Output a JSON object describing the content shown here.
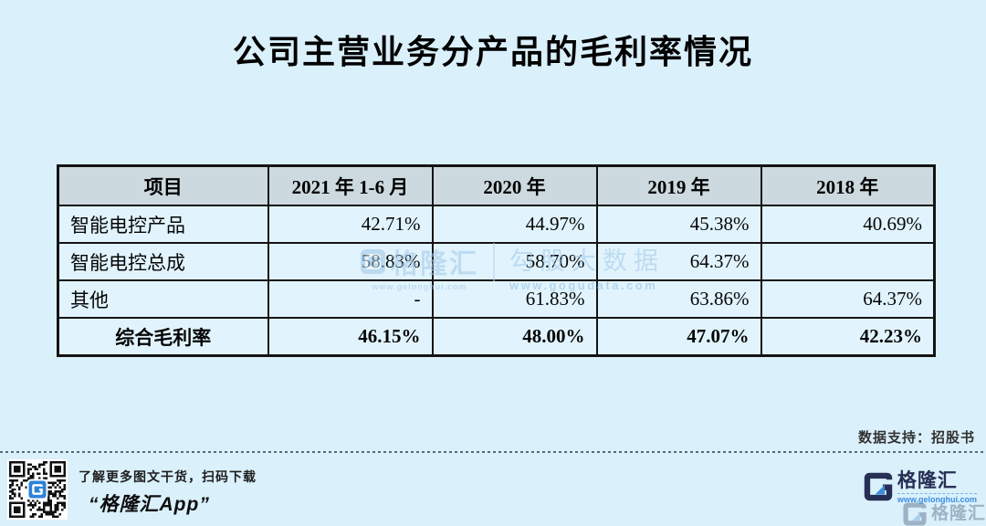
{
  "title": "公司主营业务分产品的毛利率情况",
  "table": {
    "headers": [
      "项目",
      "2021 年 1-6 月",
      "2020 年",
      "2019 年",
      "2018 年"
    ],
    "rows": [
      {
        "label": "智能电控产品",
        "values": [
          "42.71%",
          "44.97%",
          "45.38%",
          "40.69%"
        ]
      },
      {
        "label": "智能电控总成",
        "values": [
          "58.83%",
          "58.70%",
          "64.37%",
          ""
        ]
      },
      {
        "label": "其他",
        "values": [
          "-",
          "61.83%",
          "63.86%",
          "64.37%"
        ]
      },
      {
        "label": "综合毛利率",
        "values": [
          "46.15%",
          "48.00%",
          "47.07%",
          "42.23%"
        ]
      }
    ]
  },
  "watermark": {
    "brand": "格隆汇",
    "brand_site": "www.gelonghui.com",
    "partner": "勾股大数据",
    "partner_site": "www.gogudata.com"
  },
  "source_note": "数据支持：招股书",
  "footer": {
    "qr_caption": "了解更多图文干货，扫码下载",
    "qr_app": "“格隆汇App”",
    "logo_text": "格隆汇",
    "logo_site": "www.gelonghui.com"
  },
  "colors": {
    "page_bg": "#daf0fb",
    "header_bg": "#ccd9de",
    "cell_bg": "#e1f4fd",
    "logo_navy": "#272f55",
    "logo_blue": "#3d8edd",
    "watermark_blue": "#a3c8e6"
  },
  "chart_data": {
    "type": "table",
    "title": "公司主营业务分产品的毛利率情况",
    "columns": [
      "项目",
      "2021 年 1-6 月",
      "2020 年",
      "2019 年",
      "2018 年"
    ],
    "rows": [
      [
        "智能电控产品",
        "42.71%",
        "44.97%",
        "45.38%",
        "40.69%"
      ],
      [
        "智能电控总成",
        "58.83%",
        "58.70%",
        "64.37%",
        ""
      ],
      [
        "其他",
        "-",
        "61.83%",
        "63.86%",
        "64.37%"
      ],
      [
        "综合毛利率",
        "46.15%",
        "48.00%",
        "47.07%",
        "42.23%"
      ]
    ],
    "source": "数据支持：招股书"
  }
}
